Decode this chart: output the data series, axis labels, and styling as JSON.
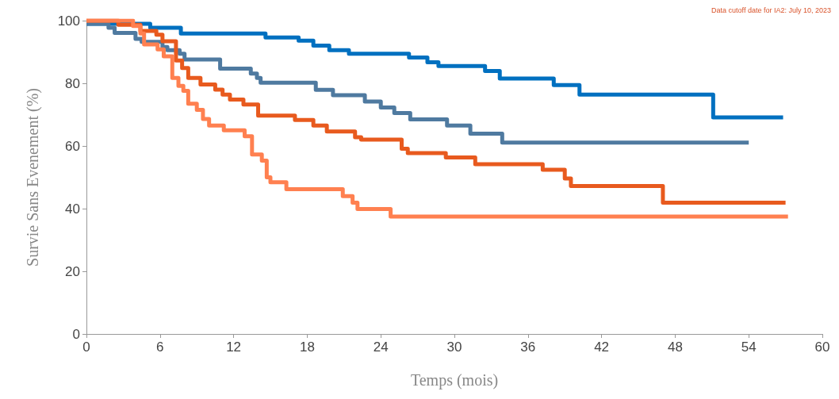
{
  "chart_data": {
    "type": "step",
    "xlabel": "Temps (mois)",
    "ylabel": "Survie Sans Evenement (%)",
    "xlim": [
      0,
      60
    ],
    "xticks": [
      0,
      6,
      12,
      18,
      24,
      30,
      36,
      42,
      48,
      54,
      60
    ],
    "ylim": [
      0,
      100
    ],
    "yticks": [
      0,
      20,
      40,
      60,
      80,
      100
    ],
    "grid": false,
    "marker": "none",
    "line_style": "solid",
    "annotations": [
      "Data cutoff date for IA2: July 10, 2023"
    ],
    "series": [
      {
        "color": "#0070c0",
        "x": [
          0,
          5.2,
          7.7,
          14.6,
          17.3,
          18.5,
          19.8,
          21.4,
          26.3,
          27.8,
          28.7,
          32.5,
          33.7,
          38.1,
          40.2,
          51.1,
          56.8
        ],
        "values": [
          99,
          97.7,
          95.9,
          94.6,
          93.6,
          92,
          90.6,
          89.4,
          88.2,
          86.7,
          85.5,
          83.9,
          81.5,
          79.4,
          76.4,
          69.1,
          69.1
        ]
      },
      {
        "color": "#4f7aa0",
        "x": [
          0,
          1.8,
          2.3,
          4.0,
          4.5,
          6.2,
          6.6,
          7.6,
          8.0,
          10.9,
          13.4,
          13.9,
          14.2,
          18.7,
          20.1,
          22.7,
          24.0,
          25.1,
          26.4,
          29.4,
          31.3,
          33.9,
          54.0
        ],
        "values": [
          99,
          97.7,
          96.1,
          94.2,
          93.2,
          91.6,
          90.6,
          89.4,
          87.6,
          84.7,
          83.1,
          81.7,
          80.2,
          77.9,
          76.2,
          74.2,
          72.3,
          70.5,
          68.5,
          66.5,
          63.9,
          61.1,
          61.1
        ]
      },
      {
        "color": "#e85a1e",
        "x": [
          0,
          2.6,
          4.4,
          5.7,
          6.2,
          7.3,
          7.8,
          8.3,
          9.3,
          10.5,
          11.1,
          11.7,
          12.8,
          14.0,
          17.0,
          18.5,
          19.6,
          21.9,
          22.4,
          25.7,
          26.2,
          29.3,
          31.7,
          37.2,
          39.0,
          39.5,
          47.0,
          57.0
        ],
        "values": [
          100,
          98.7,
          96.7,
          95.5,
          93.4,
          87.3,
          84.9,
          81.7,
          79.6,
          78,
          76.4,
          74.8,
          73.2,
          69.7,
          68.3,
          66.5,
          64.6,
          62.8,
          62,
          59.1,
          57.7,
          56.3,
          54.2,
          52.4,
          49.6,
          47.2,
          41.9,
          41.9
        ]
      },
      {
        "color": "#ff8050",
        "x": [
          0,
          3.8,
          4.4,
          4.7,
          5.8,
          6.3,
          7.0,
          7.5,
          7.9,
          8.3,
          9.0,
          9.5,
          10.0,
          11.2,
          12.9,
          13.5,
          14.3,
          14.7,
          15.0,
          16.3,
          20.9,
          21.7,
          22.1,
          24.8,
          57.2
        ],
        "values": [
          100,
          98.3,
          95.9,
          92.4,
          90.8,
          88.6,
          81.7,
          79.2,
          77.6,
          73.5,
          71.5,
          68.6,
          66.5,
          65,
          63.1,
          57.3,
          55.3,
          50,
          48.4,
          46.2,
          44,
          41.9,
          39.9,
          37.5,
          37.5
        ]
      }
    ]
  }
}
